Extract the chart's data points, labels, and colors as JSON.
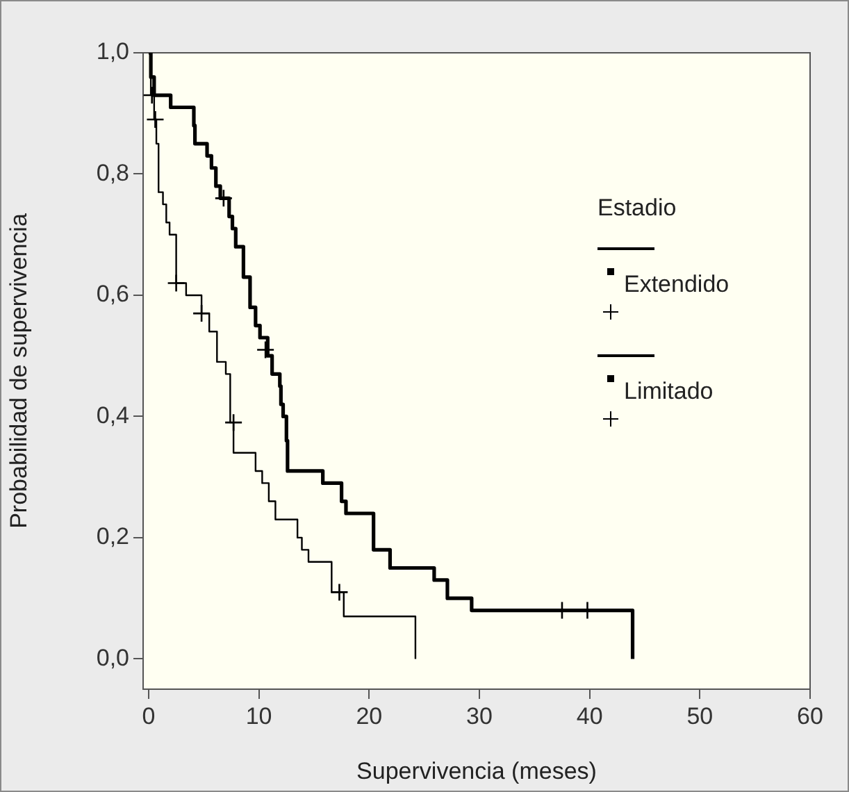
{
  "chart_data": {
    "type": "step",
    "xlabel": "Supervivencia (meses)",
    "ylabel": "Probabilidad de supervivencia",
    "legend_title": "Estadio",
    "legend": "top right",
    "xlim": [
      -0.5,
      60
    ],
    "xticks": [
      0,
      10,
      20,
      30,
      40,
      50,
      60
    ],
    "ylim": [
      -0.05,
      1.0
    ],
    "yticks": [
      {
        "value": 0,
        "label": "0,0"
      },
      {
        "value": 0.2,
        "label": "0,2"
      },
      {
        "value": 0.4,
        "label": "0,4"
      },
      {
        "value": 0.6,
        "label": "0,6"
      },
      {
        "value": 0.8,
        "label": "0,8"
      },
      {
        "value": 1.0,
        "label": "1,0"
      }
    ],
    "series": [
      {
        "name": "Extendido",
        "type": "step",
        "color": "#000000",
        "x": [
          0,
          0.2,
          0.5,
          0.7,
          0.9,
          1.3,
          1.6,
          1.9,
          2.5,
          3.4,
          4.8,
          5.5,
          6.2,
          7.0,
          7.4,
          7.7,
          9.7,
          10.3,
          10.9,
          11.5,
          13.5,
          13.9,
          14.5,
          16.6,
          17.7,
          24.2
        ],
        "values": [
          1.0,
          0.93,
          0.89,
          0.85,
          0.77,
          0.75,
          0.72,
          0.7,
          0.62,
          0.6,
          0.57,
          0.54,
          0.49,
          0.47,
          0.39,
          0.34,
          0.31,
          0.29,
          0.26,
          0.23,
          0.2,
          0.18,
          0.16,
          0.11,
          0.07,
          0.0
        ]
      },
      {
        "name": "Limitado",
        "type": "step",
        "color": "#000000",
        "x": [
          0,
          0.2,
          0.5,
          2.0,
          4.1,
          4.2,
          5.3,
          5.7,
          6.1,
          6.5,
          7.3,
          7.6,
          7.9,
          8.6,
          9.2,
          9.7,
          10.1,
          10.8,
          11.2,
          11.9,
          12.0,
          12.2,
          12.5,
          12.6,
          15.8,
          17.5,
          17.9,
          20.4,
          21.9,
          25.9,
          27.1,
          29.3,
          43.9
        ],
        "values": [
          1.0,
          0.96,
          0.93,
          0.91,
          0.88,
          0.85,
          0.83,
          0.81,
          0.78,
          0.76,
          0.73,
          0.71,
          0.68,
          0.63,
          0.58,
          0.55,
          0.53,
          0.5,
          0.47,
          0.45,
          0.42,
          0.4,
          0.36,
          0.31,
          0.29,
          0.26,
          0.24,
          0.18,
          0.15,
          0.13,
          0.1,
          0.08,
          0.0
        ]
      },
      {
        "type": "scatter",
        "marker": "cross",
        "color": "#000000",
        "x": [
          0.6,
          2.5,
          4.8,
          7.7,
          17.3
        ],
        "values": [
          0.89,
          0.62,
          0.57,
          0.39,
          0.11
        ]
      },
      {
        "type": "scatter",
        "marker": "cross",
        "color": "#000000",
        "x": [
          0.3,
          6.8,
          10.6,
          37.5,
          39.8
        ],
        "values": [
          0.93,
          0.76,
          0.51,
          0.08,
          0.08
        ]
      }
    ]
  }
}
